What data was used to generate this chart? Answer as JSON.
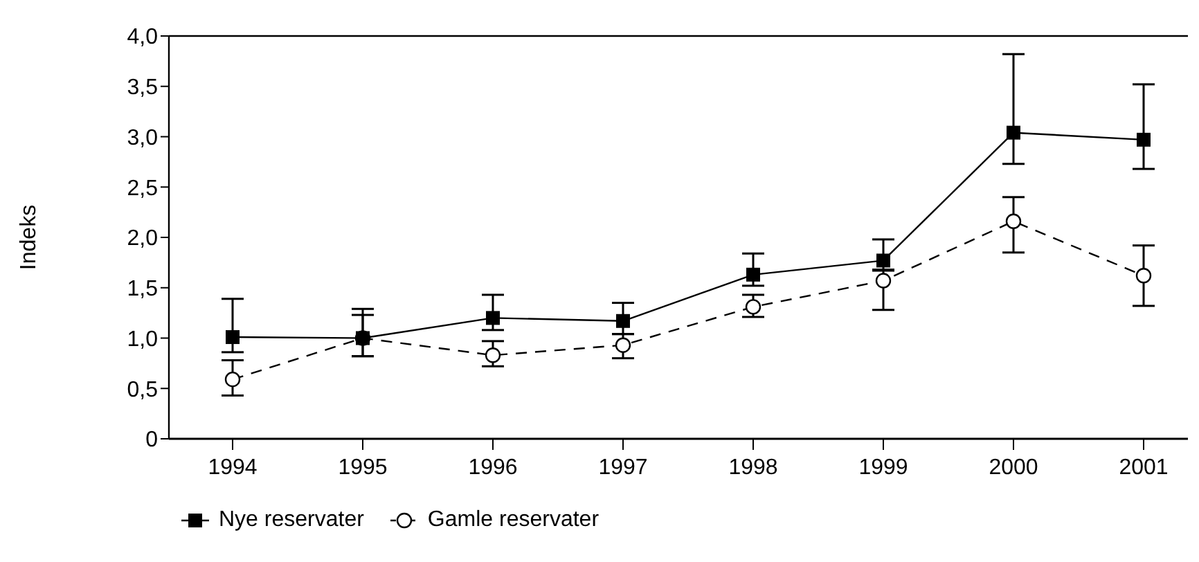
{
  "chart_data": {
    "type": "line",
    "ylabel": "Indeks",
    "categories": [
      "1994",
      "1995",
      "1996",
      "1997",
      "1998",
      "1999",
      "2000",
      "2001"
    ],
    "series": [
      {
        "name": "Nye reservater",
        "color": "#000000",
        "marker": "square",
        "line_style": "solid",
        "values": [
          1.01,
          1.0,
          1.2,
          1.17,
          1.63,
          1.77,
          3.04,
          2.97
        ],
        "errors": [
          [
            0.86,
            1.39
          ],
          [
            0.82,
            1.29
          ],
          [
            1.08,
            1.43
          ],
          [
            1.04,
            1.35
          ],
          [
            1.52,
            1.84
          ],
          [
            1.68,
            1.98
          ],
          [
            2.73,
            3.82
          ],
          [
            2.68,
            3.52
          ]
        ]
      },
      {
        "name": "Gamle reservater",
        "color": "#000000",
        "marker": "circle",
        "line_style": "dashed",
        "values": [
          0.59,
          1.0,
          0.83,
          0.93,
          1.31,
          1.57,
          2.16,
          1.62
        ],
        "errors": [
          [
            0.43,
            0.78
          ],
          [
            0.82,
            1.23
          ],
          [
            0.72,
            0.97
          ],
          [
            0.8,
            1.04
          ],
          [
            1.21,
            1.43
          ],
          [
            1.28,
            1.67
          ],
          [
            1.85,
            2.4
          ],
          [
            1.32,
            1.92
          ]
        ]
      }
    ],
    "ylim": [
      0,
      4
    ],
    "yticks": [
      0,
      {
        "value": 0.5,
        "label": "0,5"
      },
      {
        "value": 1,
        "label": "1,0"
      },
      {
        "value": 1.5,
        "label": "1,5"
      },
      {
        "value": 2,
        "label": "2,0"
      },
      {
        "value": 2.5,
        "label": "2,5"
      },
      {
        "value": 3,
        "label": "3,0"
      },
      {
        "value": 3.5,
        "label": "3,5"
      },
      {
        "value": 4,
        "label": "4,0"
      }
    ],
    "grid": false,
    "legend": "bottom left"
  }
}
